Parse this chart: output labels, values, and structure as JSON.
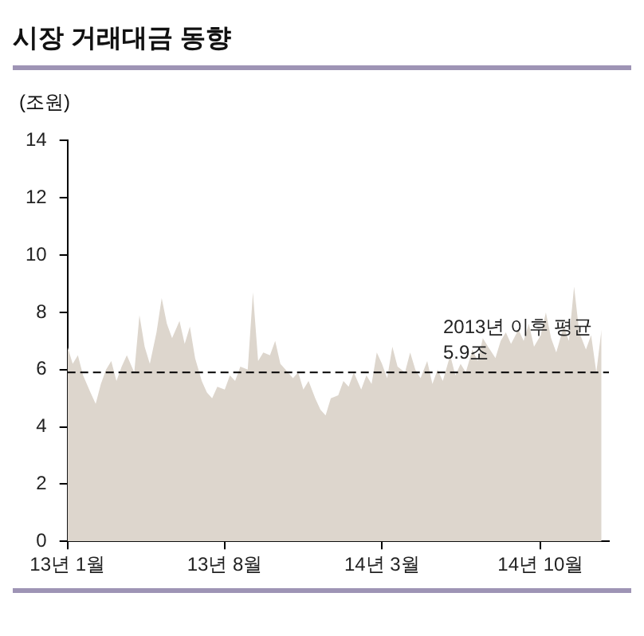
{
  "chart_data": {
    "type": "area",
    "title": "시장 거래대금 동향",
    "ylabel": "(조원)",
    "x": [
      "2013-01-01",
      "2013-01-08",
      "2013-01-15",
      "2013-01-22",
      "2013-02-01",
      "2013-02-08",
      "2013-02-15",
      "2013-02-22",
      "2013-03-01",
      "2013-03-08",
      "2013-03-15",
      "2013-03-22",
      "2013-04-01",
      "2013-04-08",
      "2013-04-15",
      "2013-04-22",
      "2013-05-01",
      "2013-05-08",
      "2013-05-15",
      "2013-05-22",
      "2013-06-01",
      "2013-06-08",
      "2013-06-15",
      "2013-06-22",
      "2013-07-01",
      "2013-07-08",
      "2013-07-15",
      "2013-07-22",
      "2013-08-01",
      "2013-08-08",
      "2013-08-15",
      "2013-08-22",
      "2013-09-01",
      "2013-09-08",
      "2013-09-15",
      "2013-09-22",
      "2013-10-01",
      "2013-10-08",
      "2013-10-15",
      "2013-10-22",
      "2013-11-01",
      "2013-11-08",
      "2013-11-15",
      "2013-11-22",
      "2013-12-01",
      "2013-12-08",
      "2013-12-15",
      "2013-12-22",
      "2014-01-01",
      "2014-01-08",
      "2014-01-15",
      "2014-01-22",
      "2014-02-01",
      "2014-02-08",
      "2014-02-15",
      "2014-02-22",
      "2014-03-01",
      "2014-03-08",
      "2014-03-15",
      "2014-03-22",
      "2014-04-01",
      "2014-04-08",
      "2014-04-15",
      "2014-04-22",
      "2014-05-01",
      "2014-05-08",
      "2014-05-15",
      "2014-05-22",
      "2014-06-01",
      "2014-06-08",
      "2014-06-15",
      "2014-06-22",
      "2014-07-01",
      "2014-07-08",
      "2014-07-15",
      "2014-07-22",
      "2014-08-01",
      "2014-08-08",
      "2014-08-15",
      "2014-08-22",
      "2014-09-01",
      "2014-09-08",
      "2014-09-15",
      "2014-09-22",
      "2014-10-01",
      "2014-10-08",
      "2014-10-15",
      "2014-10-22",
      "2014-11-01",
      "2014-11-08",
      "2014-11-15",
      "2014-11-22",
      "2014-12-01",
      "2014-12-08",
      "2014-12-15",
      "2014-12-22"
    ],
    "series": [
      {
        "color": "#ddd6cd",
        "values": [
          6.8,
          6.2,
          6.5,
          5.8,
          5.2,
          4.8,
          5.5,
          6.0,
          6.3,
          5.6,
          6.1,
          6.5,
          5.9,
          7.9,
          6.8,
          6.2,
          7.3,
          8.5,
          7.6,
          7.1,
          7.7,
          6.9,
          7.5,
          6.4,
          5.6,
          5.2,
          5.0,
          5.4,
          5.3,
          5.8,
          5.6,
          6.1,
          6.0,
          8.7,
          6.3,
          6.6,
          6.5,
          7.0,
          6.2,
          6.0,
          5.7,
          5.9,
          5.3,
          5.6,
          5.0,
          4.6,
          4.4,
          5.0,
          5.1,
          5.6,
          5.4,
          5.9,
          5.3,
          5.8,
          5.5,
          6.6,
          6.2,
          5.7,
          6.8,
          6.1,
          5.9,
          6.6,
          6.0,
          5.7,
          6.3,
          5.5,
          6.0,
          5.6,
          6.5,
          5.8,
          6.2,
          5.9,
          6.7,
          6.3,
          7.1,
          6.8,
          6.4,
          7.0,
          7.3,
          6.9,
          7.4,
          7.0,
          7.6,
          6.8,
          7.2,
          8.0,
          7.1,
          6.6,
          7.5,
          7.0,
          8.9,
          7.3,
          6.7,
          7.2,
          5.9,
          7.4
        ]
      }
    ],
    "xlim": [
      "2013-01-01",
      "2015-01-01"
    ],
    "xticks": [
      {
        "value": "2013-01-01",
        "label": "13년 1월"
      },
      {
        "value": "2013-08-01",
        "label": "13년 8월"
      },
      {
        "value": "2014-03-01",
        "label": "14년 3월"
      },
      {
        "value": "2014-10-01",
        "label": "14년 10월"
      }
    ],
    "ylim": [
      0,
      14
    ],
    "yticks": [
      0,
      2,
      4,
      6,
      8,
      10,
      12,
      14
    ],
    "grid": false,
    "ref_lines": [
      {
        "axis": "y",
        "value": 5.9,
        "label": "2013년 이후 평균\n5.9조",
        "color": "#000000",
        "line_style": "dashed"
      }
    ]
  }
}
